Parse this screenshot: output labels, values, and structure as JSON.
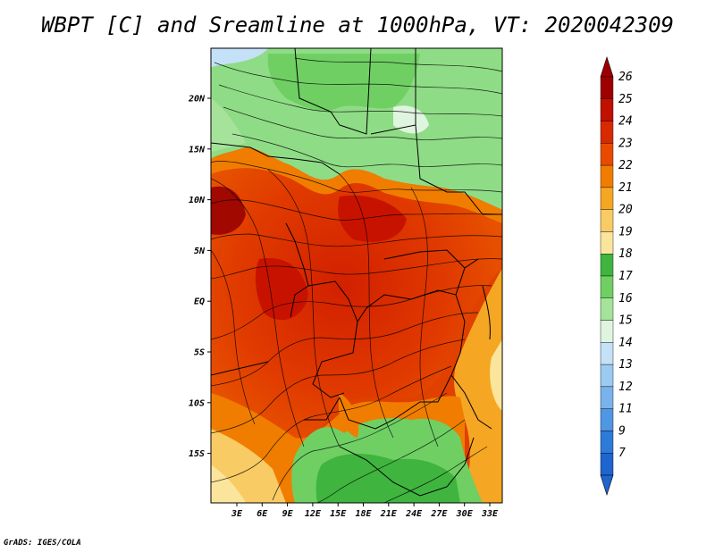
{
  "title": "WBPT [C] and Sreamline at 1000hPa, VT: 2020042309",
  "credit": "GrADS: IGES/COLA",
  "map": {
    "lat_labels": [
      "20N",
      "15N",
      "10N",
      "5N",
      "EQ",
      "5S",
      "10S",
      "15S"
    ],
    "lon_labels": [
      "3E",
      "6E",
      "9E",
      "12E",
      "15E",
      "18E",
      "21E",
      "24E",
      "27E",
      "30E",
      "33E"
    ]
  },
  "colorbar": {
    "labels": [
      "26",
      "25",
      "24",
      "23",
      "22",
      "21",
      "20",
      "19",
      "18",
      "17",
      "16",
      "15",
      "14",
      "13",
      "12",
      "11",
      "9",
      "7"
    ],
    "colors": [
      "#9e0000",
      "#c21000",
      "#d82a00",
      "#e84b00",
      "#f07d00",
      "#f5a623",
      "#f8cb64",
      "#fbe59c",
      "#3fb43f",
      "#6fcf63",
      "#a6e39a",
      "#dff5df",
      "#c4e1f7",
      "#9ccbf2",
      "#78b3ec",
      "#4f96e3",
      "#2d7bd9",
      "#1f64cf"
    ]
  }
}
